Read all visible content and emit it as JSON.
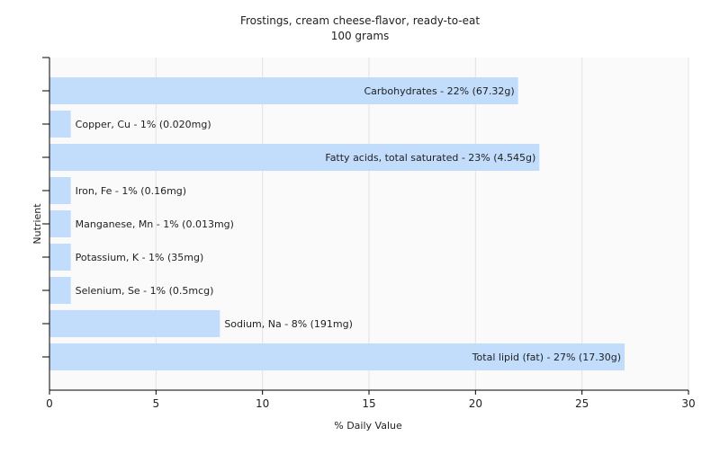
{
  "chart_data": {
    "type": "bar",
    "orientation": "horizontal",
    "title": "Frostings, cream cheese-flavor, ready-to-eat",
    "subtitle": "100 grams",
    "xlabel": "% Daily Value",
    "ylabel": "Nutrient",
    "xlim": [
      0,
      30
    ],
    "xticks": [
      "0",
      "5",
      "10",
      "15",
      "20",
      "25",
      "30"
    ],
    "grid": true,
    "bar_color": "#c2dcfc",
    "bars": [
      {
        "value": 22,
        "label": "Carbohydrates - 22% (67.32g)"
      },
      {
        "value": 1,
        "label": "Copper, Cu - 1% (0.020mg)"
      },
      {
        "value": 23,
        "label": "Fatty acids, total saturated - 23% (4.545g)"
      },
      {
        "value": 1,
        "label": "Iron, Fe - 1% (0.16mg)"
      },
      {
        "value": 1,
        "label": "Manganese, Mn - 1% (0.013mg)"
      },
      {
        "value": 1,
        "label": "Potassium, K - 1% (35mg)"
      },
      {
        "value": 1,
        "label": "Selenium, Se - 1% (0.5mcg)"
      },
      {
        "value": 8,
        "label": "Sodium, Na - 8% (191mg)"
      },
      {
        "value": 27,
        "label": "Total lipid (fat) - 27% (17.30g)"
      }
    ]
  }
}
